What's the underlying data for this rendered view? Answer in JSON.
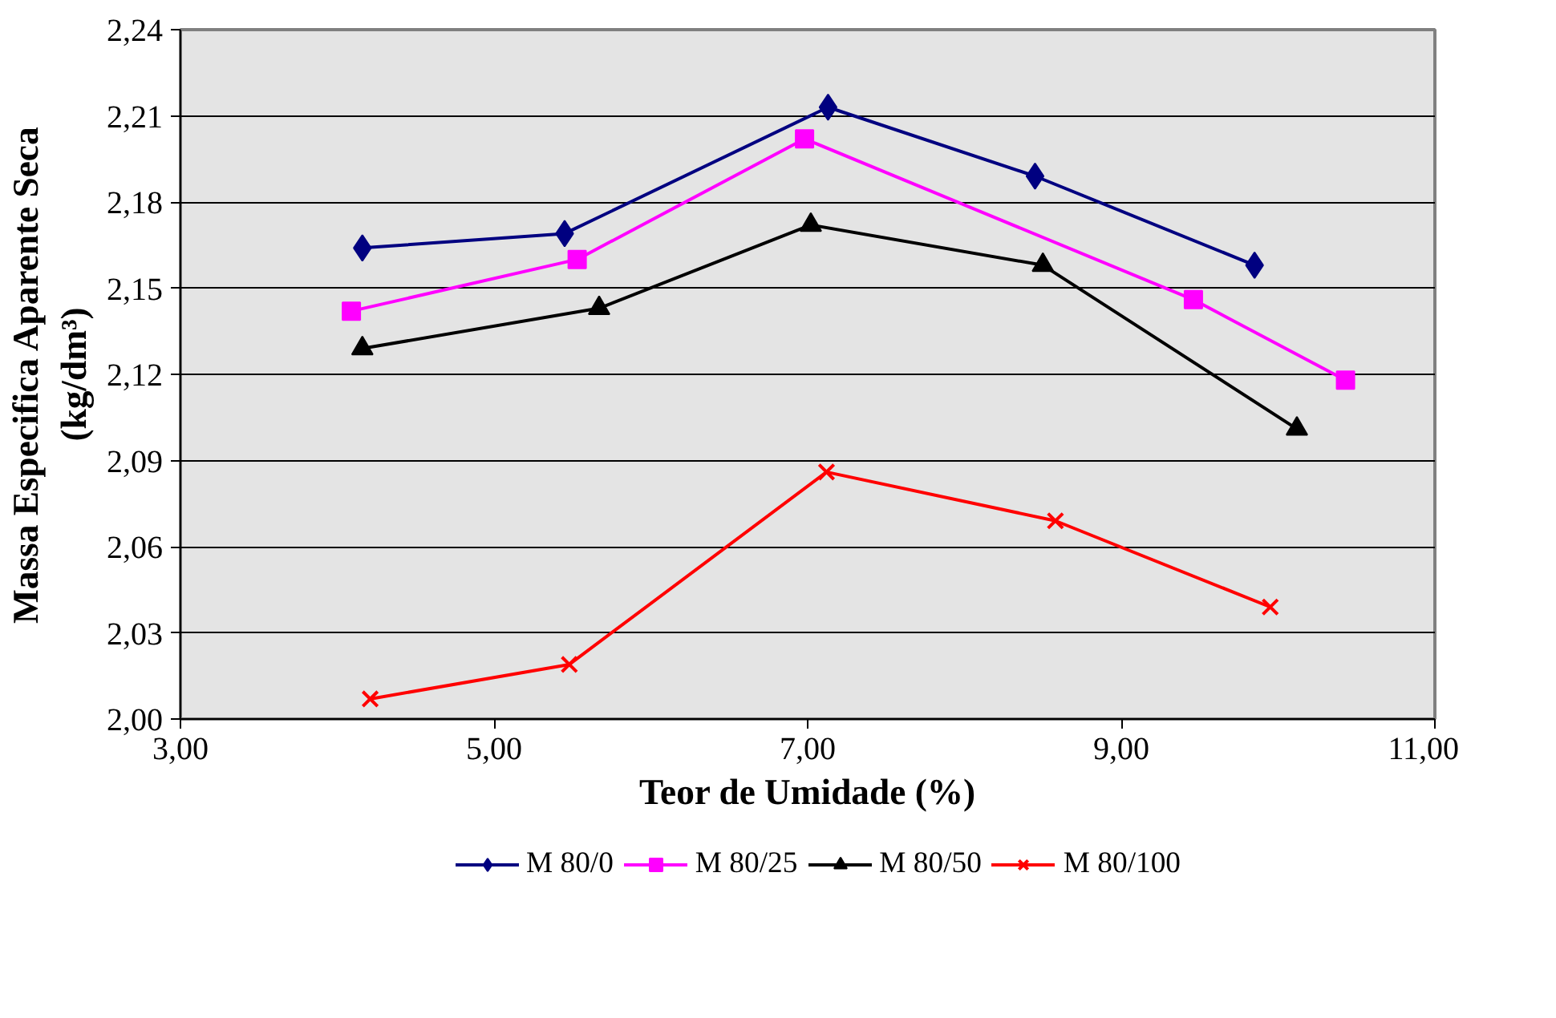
{
  "chart_data": {
    "type": "line",
    "xlabel": "Teor de Umidade (%)",
    "ylabel": "Massa Especifica Aparente Seca\n(kg/dm³)",
    "xlim": [
      3,
      11
    ],
    "ylim": [
      2.0,
      2.24
    ],
    "xticks": [
      {
        "value": 3,
        "label": "3,00"
      },
      {
        "value": 5,
        "label": "5,00"
      },
      {
        "value": 7,
        "label": "7,00"
      },
      {
        "value": 9,
        "label": "9,00"
      },
      {
        "value": 11,
        "label": "11,00"
      }
    ],
    "yticks": [
      {
        "value": 2.0,
        "label": "2,00"
      },
      {
        "value": 2.03,
        "label": "2,03"
      },
      {
        "value": 2.06,
        "label": "2,06"
      },
      {
        "value": 2.09,
        "label": "2,09"
      },
      {
        "value": 2.12,
        "label": "2,12"
      },
      {
        "value": 2.15,
        "label": "2,15"
      },
      {
        "value": 2.18,
        "label": "2,18"
      },
      {
        "value": 2.21,
        "label": "2,21"
      },
      {
        "value": 2.24,
        "label": "2,24"
      }
    ],
    "grid": "y",
    "legend": "bottom",
    "line_style": "solid",
    "series": [
      {
        "name": "M 80/0",
        "color": "#000080",
        "marker": "diamond",
        "x": [
          4.16,
          5.45,
          7.13,
          8.45,
          9.85
        ],
        "values": [
          2.164,
          2.169,
          2.213,
          2.189,
          2.158
        ]
      },
      {
        "name": "M 80/25",
        "color": "#ff00ff",
        "marker": "square",
        "x": [
          4.09,
          5.53,
          6.98,
          9.46,
          10.43
        ],
        "values": [
          2.142,
          2.16,
          2.202,
          2.146,
          2.118
        ]
      },
      {
        "name": "M 80/50",
        "color": "#000000",
        "marker": "triangle",
        "x": [
          4.16,
          5.67,
          7.02,
          8.5,
          10.12
        ],
        "values": [
          2.129,
          2.143,
          2.172,
          2.158,
          2.101
        ]
      },
      {
        "name": "M 80/100",
        "color": "#ff0000",
        "marker": "x",
        "x": [
          4.21,
          5.48,
          7.12,
          8.58,
          9.95
        ],
        "values": [
          2.007,
          2.019,
          2.086,
          2.069,
          2.039
        ]
      }
    ]
  }
}
